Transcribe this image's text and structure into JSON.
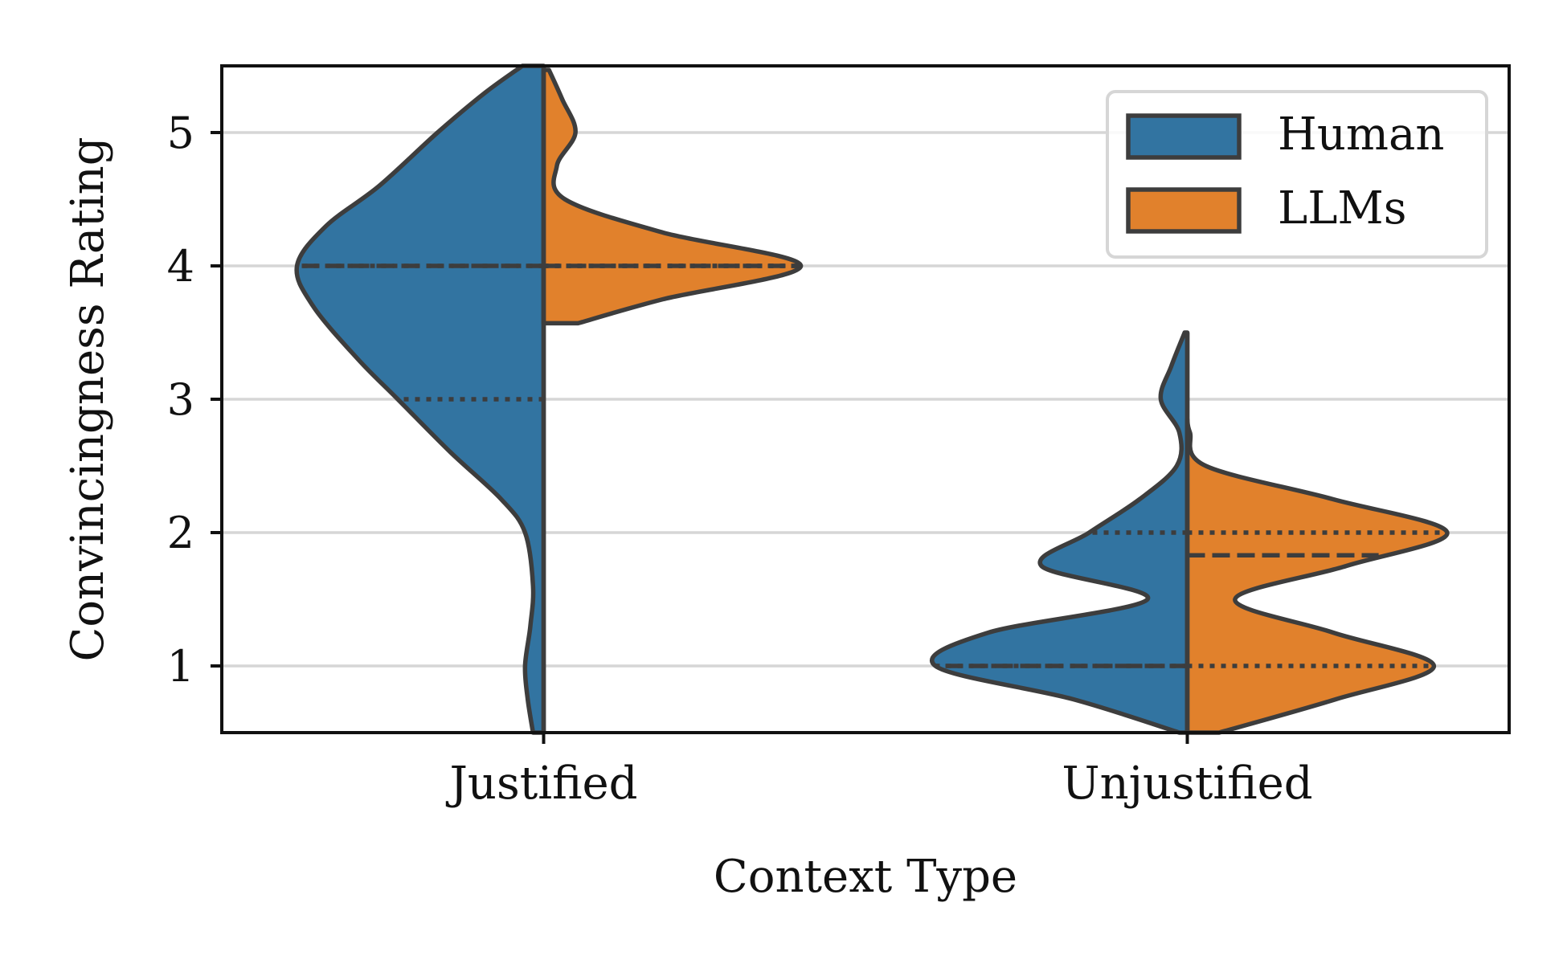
{
  "chart_data": {
    "type": "violin",
    "split": true,
    "title": "",
    "xlabel": "Context Type",
    "ylabel": "Convincingness Rating",
    "categories": [
      "Justified",
      "Unjustified"
    ],
    "ylim": [
      0.5,
      5.5
    ],
    "yticks": [
      1,
      2,
      3,
      4,
      5
    ],
    "grid": "horizontal",
    "legend": {
      "placement": "top-right",
      "entries": [
        {
          "name": "Human",
          "color": "#3274a1"
        },
        {
          "name": "LLMs",
          "color": "#e1812c"
        }
      ]
    },
    "series": [
      {
        "name": "Human",
        "side": "left",
        "color": "#3274a1",
        "violins": [
          {
            "category": "Justified",
            "range": [
              0.5,
              5.5
            ],
            "median": 4,
            "quartiles": [
              3,
              4
            ],
            "density": [
              [
                0.5,
                0.04
              ],
              [
                0.75,
                0.06
              ],
              [
                1.0,
                0.07
              ],
              [
                1.3,
                0.05
              ],
              [
                1.6,
                0.04
              ],
              [
                2.0,
                0.07
              ],
              [
                2.25,
                0.16
              ],
              [
                2.6,
                0.35
              ],
              [
                3.0,
                0.55
              ],
              [
                3.3,
                0.7
              ],
              [
                3.7,
                0.87
              ],
              [
                4.0,
                0.93
              ],
              [
                4.3,
                0.82
              ],
              [
                4.6,
                0.62
              ],
              [
                5.0,
                0.4
              ],
              [
                5.3,
                0.22
              ],
              [
                5.5,
                0.08
              ]
            ]
          },
          {
            "category": "Unjustified",
            "range": [
              0.5,
              3.5
            ],
            "median": 1,
            "quartiles": [
              1,
              2
            ],
            "density": [
              [
                0.5,
                0.03
              ],
              [
                0.75,
                0.43
              ],
              [
                1.0,
                0.95
              ],
              [
                1.25,
                0.75
              ],
              [
                1.5,
                0.15
              ],
              [
                1.75,
                0.55
              ],
              [
                2.0,
                0.37
              ],
              [
                2.25,
                0.18
              ],
              [
                2.5,
                0.04
              ],
              [
                2.75,
                0.03
              ],
              [
                3.0,
                0.1
              ],
              [
                3.25,
                0.06
              ],
              [
                3.5,
                0.01
              ]
            ]
          }
        ]
      },
      {
        "name": "LLMs",
        "side": "right",
        "color": "#e1812c",
        "violins": [
          {
            "category": "Justified",
            "range": [
              3.57,
              5.47
            ],
            "median": 4,
            "quartiles": [
              4,
              4
            ],
            "density": [
              [
                3.57,
                0.13
              ],
              [
                3.75,
                0.45
              ],
              [
                4.0,
                0.97
              ],
              [
                4.25,
                0.45
              ],
              [
                4.5,
                0.08
              ],
              [
                4.75,
                0.05
              ],
              [
                5.0,
                0.12
              ],
              [
                5.25,
                0.07
              ],
              [
                5.47,
                0.02
              ]
            ]
          },
          {
            "category": "Unjustified",
            "range": [
              0.5,
              2.85
            ],
            "median": 1.83,
            "quartiles": [
              1,
              2
            ],
            "density": [
              [
                0.5,
                0.12
              ],
              [
                0.75,
                0.56
              ],
              [
                1.0,
                0.93
              ],
              [
                1.25,
                0.55
              ],
              [
                1.5,
                0.18
              ],
              [
                1.75,
                0.6
              ],
              [
                2.0,
                0.98
              ],
              [
                2.25,
                0.55
              ],
              [
                2.5,
                0.07
              ],
              [
                2.75,
                0.01
              ],
              [
                2.85,
                0.0
              ]
            ]
          }
        ]
      }
    ]
  }
}
